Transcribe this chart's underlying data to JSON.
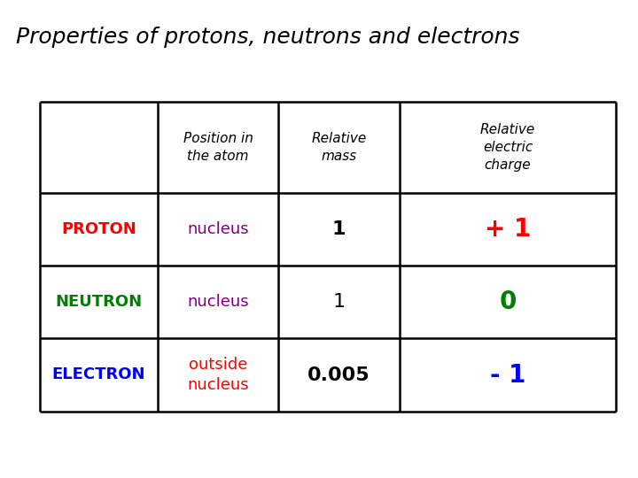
{
  "title": "Properties of protons, neutrons and electrons",
  "title_fontsize": 18,
  "background_color": "#ffffff",
  "line_color": "#000000",
  "line_width": 1.8,
  "header_fontsize": 11,
  "label_fontsize": 13,
  "data_fontsize": 16,
  "charge_fontsize": 20,
  "headers": [
    "",
    "Position in\nthe atom",
    "Relative\nmass",
    "Relative\nelectric\ncharge"
  ],
  "rows": [
    {
      "label": "PROTON",
      "label_color": "#ff0000",
      "position": "nucleus",
      "position_color": "#800080",
      "mass": "1",
      "mass_bold": true,
      "charge": "+ 1",
      "charge_color": "#ff0000"
    },
    {
      "label": "NEUTRON",
      "label_color": "#008000",
      "position": "nucleus",
      "position_color": "#800080",
      "mass": "1",
      "mass_bold": false,
      "charge": "0",
      "charge_color": "#008000"
    },
    {
      "label": "ELECTRON",
      "label_color": "#0000ff",
      "position": "outside\nnucleus",
      "position_color": "#ff0000",
      "mass": "0.005",
      "mass_bold": true,
      "charge": "- 1",
      "charge_color": "#0000ff"
    }
  ]
}
